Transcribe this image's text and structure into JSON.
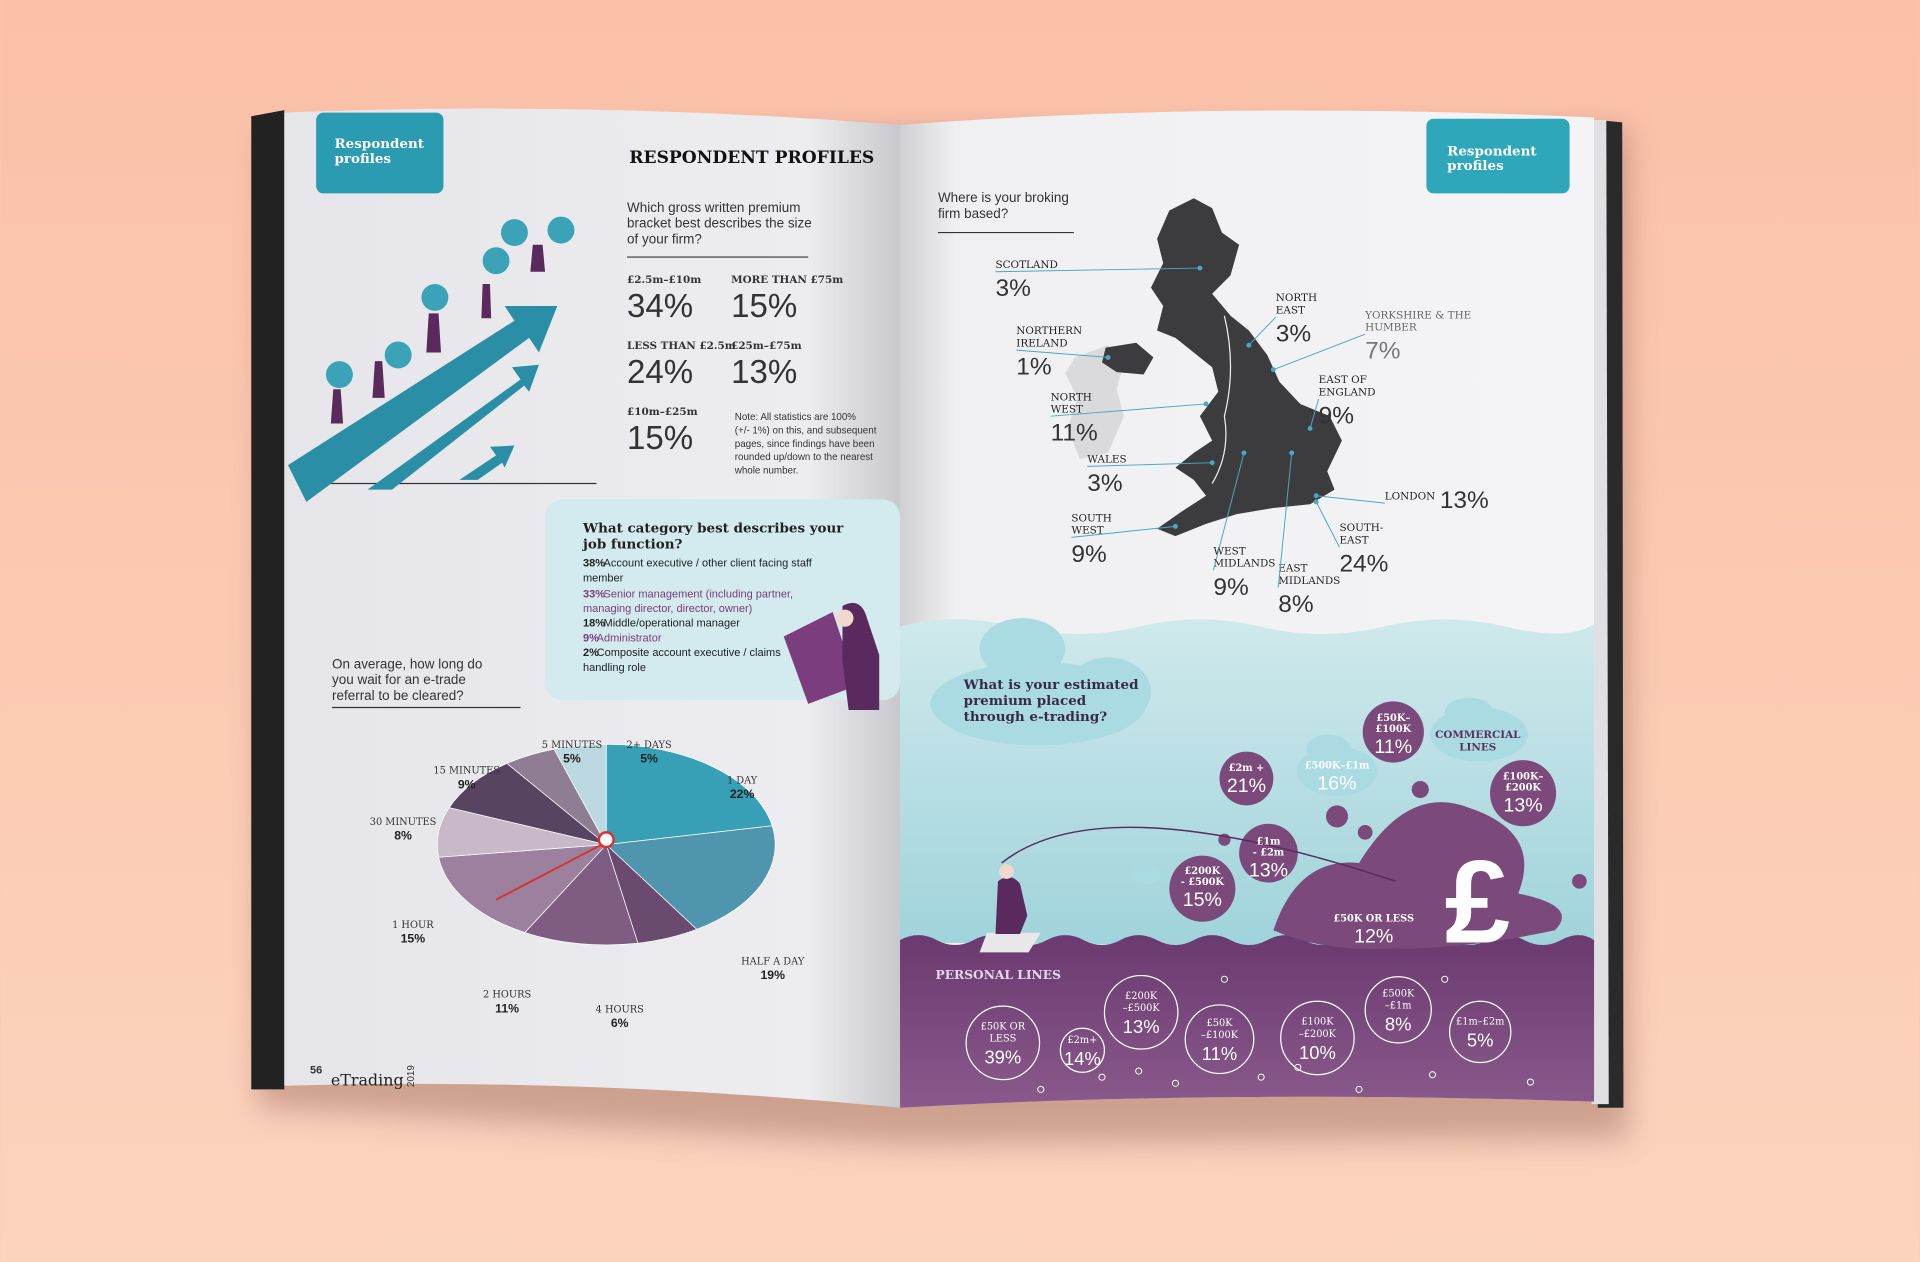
{
  "left_page": {
    "tab": [
      "Respondent",
      "profiles"
    ],
    "heading": "RESPONDENT PROFILES",
    "premium_question": [
      "Which gross written premium",
      "bracket best describes the size",
      "of your firm?"
    ],
    "premium_brackets": [
      {
        "label": "£2.5m–£10m",
        "value": "34%"
      },
      {
        "label": "MORE THAN £75m",
        "value": "15%"
      },
      {
        "label": "LESS THAN £2.5m",
        "value": "24%"
      },
      {
        "label": "£25m–£75m",
        "value": "13%"
      },
      {
        "label": "£10m–£25m",
        "value": "15%"
      }
    ],
    "note": [
      "Note: All statistics are 100%",
      "(+/- 1%) on this, and subsequent",
      "pages, since findings have been",
      "rounded up/down to the nearest",
      "whole number."
    ],
    "job_question": [
      "What category best describes your",
      "job function?"
    ],
    "job_functions": [
      {
        "pct": "38%",
        "text": [
          "Account executive / other client facing staff",
          "member"
        ]
      },
      {
        "pct": "33%",
        "text": [
          "Senior management (including partner,",
          "managing director, director, owner)"
        ]
      },
      {
        "pct": "18%",
        "text": [
          "Middle/operational manager"
        ]
      },
      {
        "pct": "9%",
        "text": [
          "Administrator"
        ]
      },
      {
        "pct": "2%",
        "text": [
          "Composite account executive / claims",
          "handling role"
        ]
      }
    ],
    "wait_question": [
      "On average, how long do",
      "you wait for an e-trade",
      "referral to be cleared?"
    ],
    "wait_slices": [
      {
        "label": "1 DAY",
        "value": 22,
        "value_label": "22%"
      },
      {
        "label": "HALF A DAY",
        "value": 19,
        "value_label": "19%"
      },
      {
        "label": "4 HOURS",
        "value": 6,
        "value_label": "6%"
      },
      {
        "label": "2 HOURS",
        "value": 11,
        "value_label": "11%"
      },
      {
        "label": "1 HOUR",
        "value": 15,
        "value_label": "15%"
      },
      {
        "label": "30 MINUTES",
        "value": 8,
        "value_label": "8%"
      },
      {
        "label": "15 MINUTES",
        "value": 9,
        "value_label": "9%"
      },
      {
        "label": "5 MINUTES",
        "value": 5,
        "value_label": "5%"
      },
      {
        "label": "2+ DAYS",
        "value": 5,
        "value_label": "5%"
      }
    ],
    "footer": {
      "page": "56",
      "brand": "eTrading",
      "year": "2019"
    }
  },
  "right_page": {
    "tab": [
      "Respondent",
      "profiles"
    ],
    "region_question": [
      "Where is your broking",
      "firm based?"
    ],
    "regions": [
      {
        "name": [
          "SCOTLAND"
        ],
        "value": "3%"
      },
      {
        "name": [
          "NORTHERN",
          "IRELAND"
        ],
        "value": "1%"
      },
      {
        "name": [
          "NORTH",
          "WEST"
        ],
        "value": "11%"
      },
      {
        "name": [
          "WALES"
        ],
        "value": "3%"
      },
      {
        "name": [
          "SOUTH",
          "WEST"
        ],
        "value": "9%"
      },
      {
        "name": [
          "WEST",
          "MIDLANDS"
        ],
        "value": "9%"
      },
      {
        "name": [
          "EAST",
          "MIDLANDS"
        ],
        "value": "8%"
      },
      {
        "name": [
          "NORTH",
          "EAST"
        ],
        "value": "3%"
      },
      {
        "name": [
          "YORKSHIRE & THE",
          "HUMBER"
        ],
        "value": "7%"
      },
      {
        "name": [
          "EAST OF",
          "ENGLAND"
        ],
        "value": "9%"
      },
      {
        "name": [
          "LONDON"
        ],
        "value": "13%"
      },
      {
        "name": [
          "SOUTH-",
          "EAST"
        ],
        "value": "24%"
      }
    ],
    "etrading_question": [
      "What is your estimated",
      "premium placed",
      "through e-trading?"
    ],
    "commercial_label": [
      "COMMERCIAL",
      "LINES"
    ],
    "commercial": [
      {
        "band": [
          "£2m +"
        ],
        "value": "21%"
      },
      {
        "band": [
          "£500K–£1m"
        ],
        "value": "16%"
      },
      {
        "band": [
          "£50K–",
          "£100K"
        ],
        "value": "11%"
      },
      {
        "band": [
          "£100K–",
          "£200K"
        ],
        "value": "13%"
      },
      {
        "band": [
          "£1m",
          "- £2m"
        ],
        "value": "13%"
      },
      {
        "band": [
          "£200K",
          "- £500K"
        ],
        "value": "15%"
      },
      {
        "band": [
          "£50K OR LESS"
        ],
        "value": "12%"
      }
    ],
    "personal_label": "PERSONAL LINES",
    "personal": [
      {
        "band": [
          "£50K OR",
          "LESS"
        ],
        "value": "39%"
      },
      {
        "band": [
          "£2m+"
        ],
        "value": "14%"
      },
      {
        "band": [
          "£200K",
          "–£500K"
        ],
        "value": "13%"
      },
      {
        "band": [
          "£50K",
          "–£100K"
        ],
        "value": "11%"
      },
      {
        "band": [
          "£100K",
          "–£200K"
        ],
        "value": "10%"
      },
      {
        "band": [
          "£500K",
          "–£1m"
        ],
        "value": "8%"
      },
      {
        "band": [
          "£1m–£2m"
        ],
        "value": "5%"
      }
    ]
  }
}
